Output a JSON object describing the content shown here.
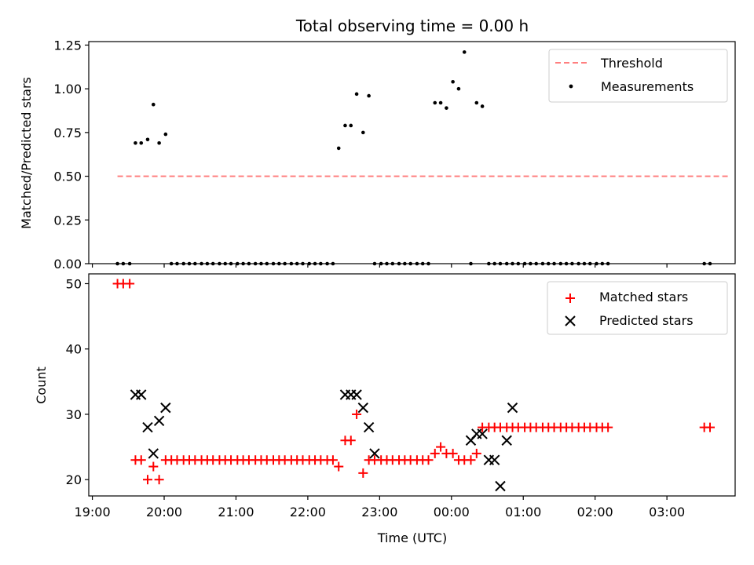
{
  "chart_data": {
    "type": "scatter",
    "title": "Total observing time = 0.00 h",
    "xlabel": "Time (UTC)",
    "x_tick_labels": [
      "19:00",
      "20:00",
      "21:00",
      "22:00",
      "23:00",
      "00:00",
      "01:00",
      "02:00",
      "03:00"
    ],
    "x_tick_hours": [
      0,
      1,
      2,
      3,
      4,
      5,
      6,
      7,
      8
    ],
    "x_range_hours_after_19": [
      -0.05,
      8.95
    ],
    "top": {
      "ylabel": "Matched/Predicted stars",
      "ylim": [
        0,
        1.27
      ],
      "y_ticks": [
        0,
        0.25,
        0.5,
        0.75,
        1.0,
        1.25
      ],
      "y_tick_labels": [
        "0.00",
        "0.25",
        "0.50",
        "0.75",
        "1.00",
        "1.25"
      ],
      "series": [
        {
          "name": "Threshold",
          "style": "dashed-line",
          "color": "#ff7f7f",
          "x": [
            0.35,
            8.85
          ],
          "y": [
            0.5,
            0.5
          ]
        },
        {
          "name": "Measurements",
          "style": "dot",
          "color": "#000000",
          "x": [
            0.35,
            0.43,
            0.52,
            0.6,
            0.68,
            0.77,
            0.85,
            0.93,
            1.02,
            1.1,
            1.18,
            1.27,
            1.35,
            1.43,
            1.52,
            1.6,
            1.68,
            1.77,
            1.85,
            1.93,
            2.02,
            2.1,
            2.18,
            2.27,
            2.35,
            2.43,
            2.52,
            2.6,
            2.68,
            2.77,
            2.85,
            2.93,
            3.02,
            3.1,
            3.18,
            3.27,
            3.35,
            3.43,
            3.52,
            3.6,
            3.68,
            3.77,
            3.85,
            3.93,
            4.02,
            4.1,
            4.18,
            4.27,
            4.35,
            4.43,
            4.52,
            4.6,
            4.68,
            4.77,
            4.85,
            4.93,
            5.02,
            5.1,
            5.18,
            5.27,
            5.35,
            5.43,
            5.52,
            5.6,
            5.68,
            5.77,
            5.85,
            5.93,
            6.02,
            6.1,
            6.18,
            6.27,
            6.35,
            6.43,
            6.52,
            6.6,
            6.68,
            6.77,
            6.85,
            6.93,
            7.02,
            7.1,
            7.18,
            8.52,
            8.6
          ],
          "y": [
            0,
            0,
            0,
            0.69,
            0.69,
            0.71,
            0.91,
            0.69,
            0.74,
            0,
            0,
            0,
            0,
            0,
            0,
            0,
            0,
            0,
            0,
            0,
            0,
            0,
            0,
            0,
            0,
            0,
            0,
            0,
            0,
            0,
            0,
            0,
            0,
            0,
            0,
            0,
            0,
            0.66,
            0.79,
            0.79,
            0.97,
            0.75,
            0.96,
            0,
            0,
            0,
            0,
            0,
            0,
            0,
            0,
            0,
            0,
            0.92,
            0.92,
            0.89,
            1.04,
            1.0,
            1.21,
            0,
            0.92,
            0.9,
            0,
            0,
            0,
            0,
            0,
            0,
            0,
            0,
            0,
            0,
            0,
            0,
            0,
            0,
            0,
            0,
            0,
            0,
            0,
            0,
            0,
            0,
            0
          ]
        }
      ],
      "legend": {
        "placement": "top-right",
        "entries": [
          "Threshold",
          "Measurements"
        ]
      }
    },
    "bottom": {
      "ylabel": "Count",
      "ylim": [
        17.5,
        51.5
      ],
      "y_ticks": [
        20,
        30,
        40,
        50
      ],
      "y_tick_labels": [
        "20",
        "30",
        "40",
        "50"
      ],
      "series": [
        {
          "name": "Matched stars",
          "style": "plus",
          "color": "#ff0000",
          "x": [
            0.35,
            0.43,
            0.52,
            0.6,
            0.68,
            0.77,
            0.85,
            0.93,
            1.02,
            1.1,
            1.18,
            1.27,
            1.35,
            1.43,
            1.52,
            1.6,
            1.68,
            1.77,
            1.85,
            1.93,
            2.02,
            2.1,
            2.18,
            2.27,
            2.35,
            2.43,
            2.52,
            2.6,
            2.68,
            2.77,
            2.85,
            2.93,
            3.02,
            3.1,
            3.18,
            3.27,
            3.35,
            3.43,
            3.52,
            3.6,
            3.68,
            3.77,
            3.85,
            3.93,
            4.02,
            4.1,
            4.18,
            4.27,
            4.35,
            4.43,
            4.52,
            4.6,
            4.68,
            4.77,
            4.85,
            4.93,
            5.02,
            5.1,
            5.18,
            5.27,
            5.35,
            5.43,
            5.52,
            5.6,
            5.68,
            5.77,
            5.85,
            5.93,
            6.02,
            6.1,
            6.18,
            6.27,
            6.35,
            6.43,
            6.52,
            6.6,
            6.68,
            6.77,
            6.85,
            6.93,
            7.02,
            7.1,
            7.18,
            8.52,
            8.6
          ],
          "y": [
            50,
            50,
            50,
            23,
            23,
            20,
            22,
            20,
            23,
            23,
            23,
            23,
            23,
            23,
            23,
            23,
            23,
            23,
            23,
            23,
            23,
            23,
            23,
            23,
            23,
            23,
            23,
            23,
            23,
            23,
            23,
            23,
            23,
            23,
            23,
            23,
            23,
            22,
            26,
            26,
            30,
            21,
            23,
            23,
            23,
            23,
            23,
            23,
            23,
            23,
            23,
            23,
            23,
            24,
            25,
            24,
            24,
            23,
            23,
            23,
            24,
            28,
            28,
            28,
            28,
            28,
            28,
            28,
            28,
            28,
            28,
            28,
            28,
            28,
            28,
            28,
            28,
            28,
            28,
            28,
            28,
            28,
            28,
            28,
            28
          ]
        },
        {
          "name": "Predicted stars",
          "style": "x",
          "color": "#000000",
          "x": [
            0.6,
            0.68,
            0.77,
            0.85,
            0.93,
            1.02,
            3.52,
            3.6,
            3.68,
            3.77,
            3.85,
            3.93,
            5.27,
            5.35,
            5.43,
            5.52,
            5.6,
            5.68,
            5.77,
            5.85
          ],
          "y": [
            33,
            33,
            28,
            24,
            29,
            31,
            33,
            33,
            33,
            31,
            28,
            24,
            26,
            27,
            27,
            23,
            23,
            19,
            26,
            31
          ]
        }
      ],
      "legend": {
        "placement": "top-right",
        "entries": [
          "Matched stars",
          "Predicted stars"
        ]
      }
    }
  }
}
